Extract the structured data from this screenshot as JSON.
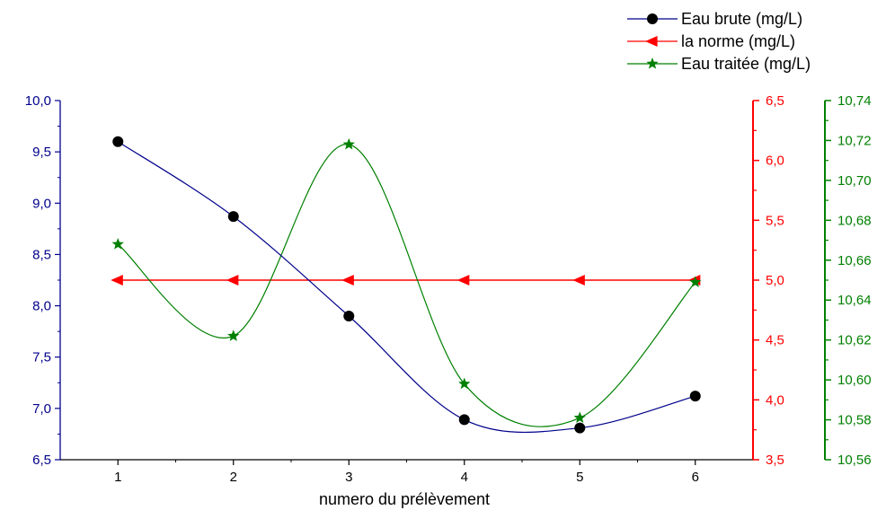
{
  "chart_data": {
    "type": "line",
    "xlabel": "numero du prélèvement",
    "x": [
      1,
      2,
      3,
      4,
      5,
      6
    ],
    "xlim": [
      0.5,
      6.5
    ],
    "colors": {
      "left": "#00008B",
      "middle": "#FF0000",
      "right": "#008000",
      "brute_fill": "#000000"
    },
    "axes": {
      "left": {
        "ylim": [
          6.5,
          10.0
        ],
        "ticks": [
          6.5,
          7.0,
          7.5,
          8.0,
          8.5,
          9.0,
          9.5,
          10.0
        ],
        "tick_labels": [
          "6,5",
          "7,0",
          "7,5",
          "8,0",
          "8,5",
          "9,0",
          "9,5",
          "10,0"
        ]
      },
      "middle": {
        "ylim": [
          3.5,
          6.5
        ],
        "ticks": [
          3.5,
          4.0,
          4.5,
          5.0,
          5.5,
          6.0,
          6.5
        ],
        "tick_labels": [
          "3,5",
          "4,0",
          "4,5",
          "5,0",
          "5,5",
          "6,0",
          "6,5"
        ]
      },
      "right": {
        "ylim": [
          10.56,
          10.74
        ],
        "ticks": [
          10.56,
          10.58,
          10.6,
          10.62,
          10.64,
          10.66,
          10.68,
          10.7,
          10.72,
          10.74
        ],
        "tick_labels": [
          "10,56",
          "10,58",
          "10,60",
          "10,62",
          "10,64",
          "10,66",
          "10,68",
          "10,70",
          "10,72",
          "10,74"
        ]
      }
    },
    "series": [
      {
        "name": "Eau brute (mg/L)",
        "axis": "left",
        "marker": "circle",
        "values": [
          9.6,
          8.87,
          7.9,
          6.89,
          6.81,
          7.12
        ]
      },
      {
        "name": "la norme (mg/L)",
        "axis": "middle",
        "marker": "triangle-left",
        "values": [
          5.0,
          5.0,
          5.0,
          5.0,
          5.0,
          5.0
        ]
      },
      {
        "name": "Eau traitée (mg/L)",
        "axis": "right",
        "marker": "star",
        "values": [
          10.668,
          10.622,
          10.718,
          10.598,
          10.581,
          10.649
        ]
      }
    ],
    "legend_position": "top-right"
  }
}
